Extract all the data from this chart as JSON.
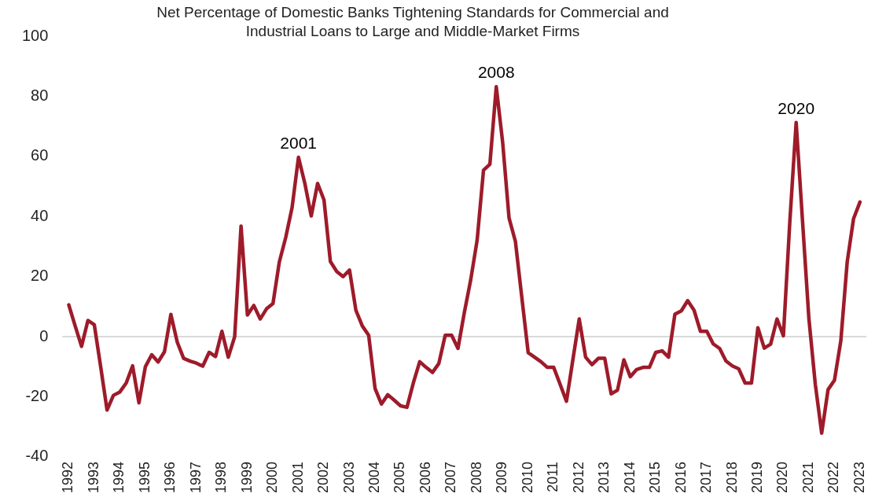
{
  "chart_data": {
    "type": "line",
    "title": "Net Percentage of Domestic Banks Tightening Standards for Commercial and Industrial Loans to Large and Middle-Market Firms",
    "x": [
      1992,
      1992.25,
      1992.5,
      1992.75,
      1993,
      1993.25,
      1993.5,
      1993.75,
      1994,
      1994.25,
      1994.5,
      1994.75,
      1995,
      1995.25,
      1995.5,
      1995.75,
      1996,
      1996.25,
      1996.5,
      1996.75,
      1997,
      1997.25,
      1997.5,
      1997.75,
      1998,
      1998.25,
      1998.5,
      1998.75,
      1999,
      1999.25,
      1999.5,
      1999.75,
      2000,
      2000.25,
      2000.5,
      2000.75,
      2001,
      2001.25,
      2001.5,
      2001.75,
      2002,
      2002.25,
      2002.5,
      2002.75,
      2003,
      2003.25,
      2003.5,
      2003.75,
      2004,
      2004.25,
      2004.5,
      2004.75,
      2005,
      2005.25,
      2005.5,
      2005.75,
      2006,
      2006.25,
      2006.5,
      2006.75,
      2007,
      2007.25,
      2007.5,
      2007.75,
      2008,
      2008.25,
      2008.5,
      2008.75,
      2009,
      2009.25,
      2009.5,
      2009.75,
      2010,
      2010.25,
      2010.5,
      2010.75,
      2011,
      2011.25,
      2011.5,
      2011.75,
      2012,
      2012.25,
      2012.5,
      2012.75,
      2013,
      2013.25,
      2013.5,
      2013.75,
      2014,
      2014.25,
      2014.5,
      2014.75,
      2015,
      2015.25,
      2015.5,
      2015.75,
      2016,
      2016.25,
      2016.5,
      2016.75,
      2017,
      2017.25,
      2017.5,
      2017.75,
      2018,
      2018.25,
      2018.5,
      2018.75,
      2019,
      2019.25,
      2019.5,
      2019.75,
      2020,
      2020.25,
      2020.5,
      2020.75,
      2021,
      2021.25,
      2021.5,
      2021.75,
      2022,
      2022.25,
      2022.5,
      2022.75,
      2023
    ],
    "series": [
      {
        "color": "#9e1b2a",
        "values": [
          10.6,
          3.6,
          -3.2,
          5.4,
          4,
          -10,
          -24.4,
          -19.5,
          -18.4,
          -15.4,
          -9.7,
          -22,
          -10,
          -6,
          -8.4,
          -5,
          7.4,
          -1.8,
          -7.2,
          -8.1,
          -8.8,
          -9.8,
          -5.2,
          -6.6,
          1.8,
          -6.8,
          0,
          36.8,
          7.2,
          10.4,
          5.9,
          9.3,
          11,
          24.9,
          33,
          43,
          59.7,
          51,
          40.2,
          51,
          45.5,
          25,
          21.7,
          20,
          22.2,
          8.8,
          3.6,
          0.5,
          -17.2,
          -22.4,
          -19.3,
          -21.1,
          -23,
          -23.5,
          -15.4,
          -8.3,
          -10.2,
          -11.9,
          -8.9,
          0.5,
          0.5,
          -3.9,
          8.1,
          19,
          32.1,
          55.4,
          57.4,
          83.2,
          64.7,
          39.5,
          31.7,
          13.1,
          -5.3,
          -6.8,
          -8.3,
          -10.2,
          -10.2,
          -15.8,
          -21.5,
          -7.7,
          5.9,
          -6.8,
          -9.3,
          -7.2,
          -7.2,
          -19,
          -17.8,
          -7.7,
          -13.3,
          -10.9,
          -10.2,
          -10.2,
          -5.2,
          -4.7,
          -6.8,
          7.5,
          8.6,
          12,
          8.8,
          1.8,
          1.8,
          -2.4,
          -3.9,
          -8.1,
          -9.7,
          -10.7,
          -15.4,
          -15.4,
          3,
          -3.8,
          -2.5,
          5.9,
          0.3,
          38,
          71.3,
          38.4,
          5.9,
          -15.8,
          -32.1,
          -17.6,
          -14.5,
          -1.4,
          24.9,
          39.3,
          44.8
        ]
      }
    ],
    "xlim": [
      1991.75,
      2023.25
    ],
    "xticks": [
      1992,
      1993,
      1994,
      1995,
      1996,
      1997,
      1998,
      1999,
      2000,
      2001,
      2002,
      2003,
      2004,
      2005,
      2006,
      2007,
      2008,
      2009,
      2010,
      2011,
      2012,
      2013,
      2014,
      2015,
      2016,
      2017,
      2018,
      2019,
      2020,
      2021,
      2022,
      2023
    ],
    "ylim": [
      -40,
      100
    ],
    "yticks": [
      -40,
      -20,
      0,
      20,
      40,
      60,
      80,
      100
    ],
    "ref_lines": [
      {
        "axis": "y",
        "value": 0,
        "color": "#d9d9d9"
      }
    ],
    "annotations": [
      {
        "text": "2001",
        "x": 2001,
        "y": 59.7
      },
      {
        "text": "2008",
        "x": 2008.75,
        "y": 83.2
      },
      {
        "text": "2020",
        "x": 2020.5,
        "y": 71.3
      }
    ],
    "grid": false,
    "legend": false,
    "marker": "none",
    "line_style": "solid"
  }
}
